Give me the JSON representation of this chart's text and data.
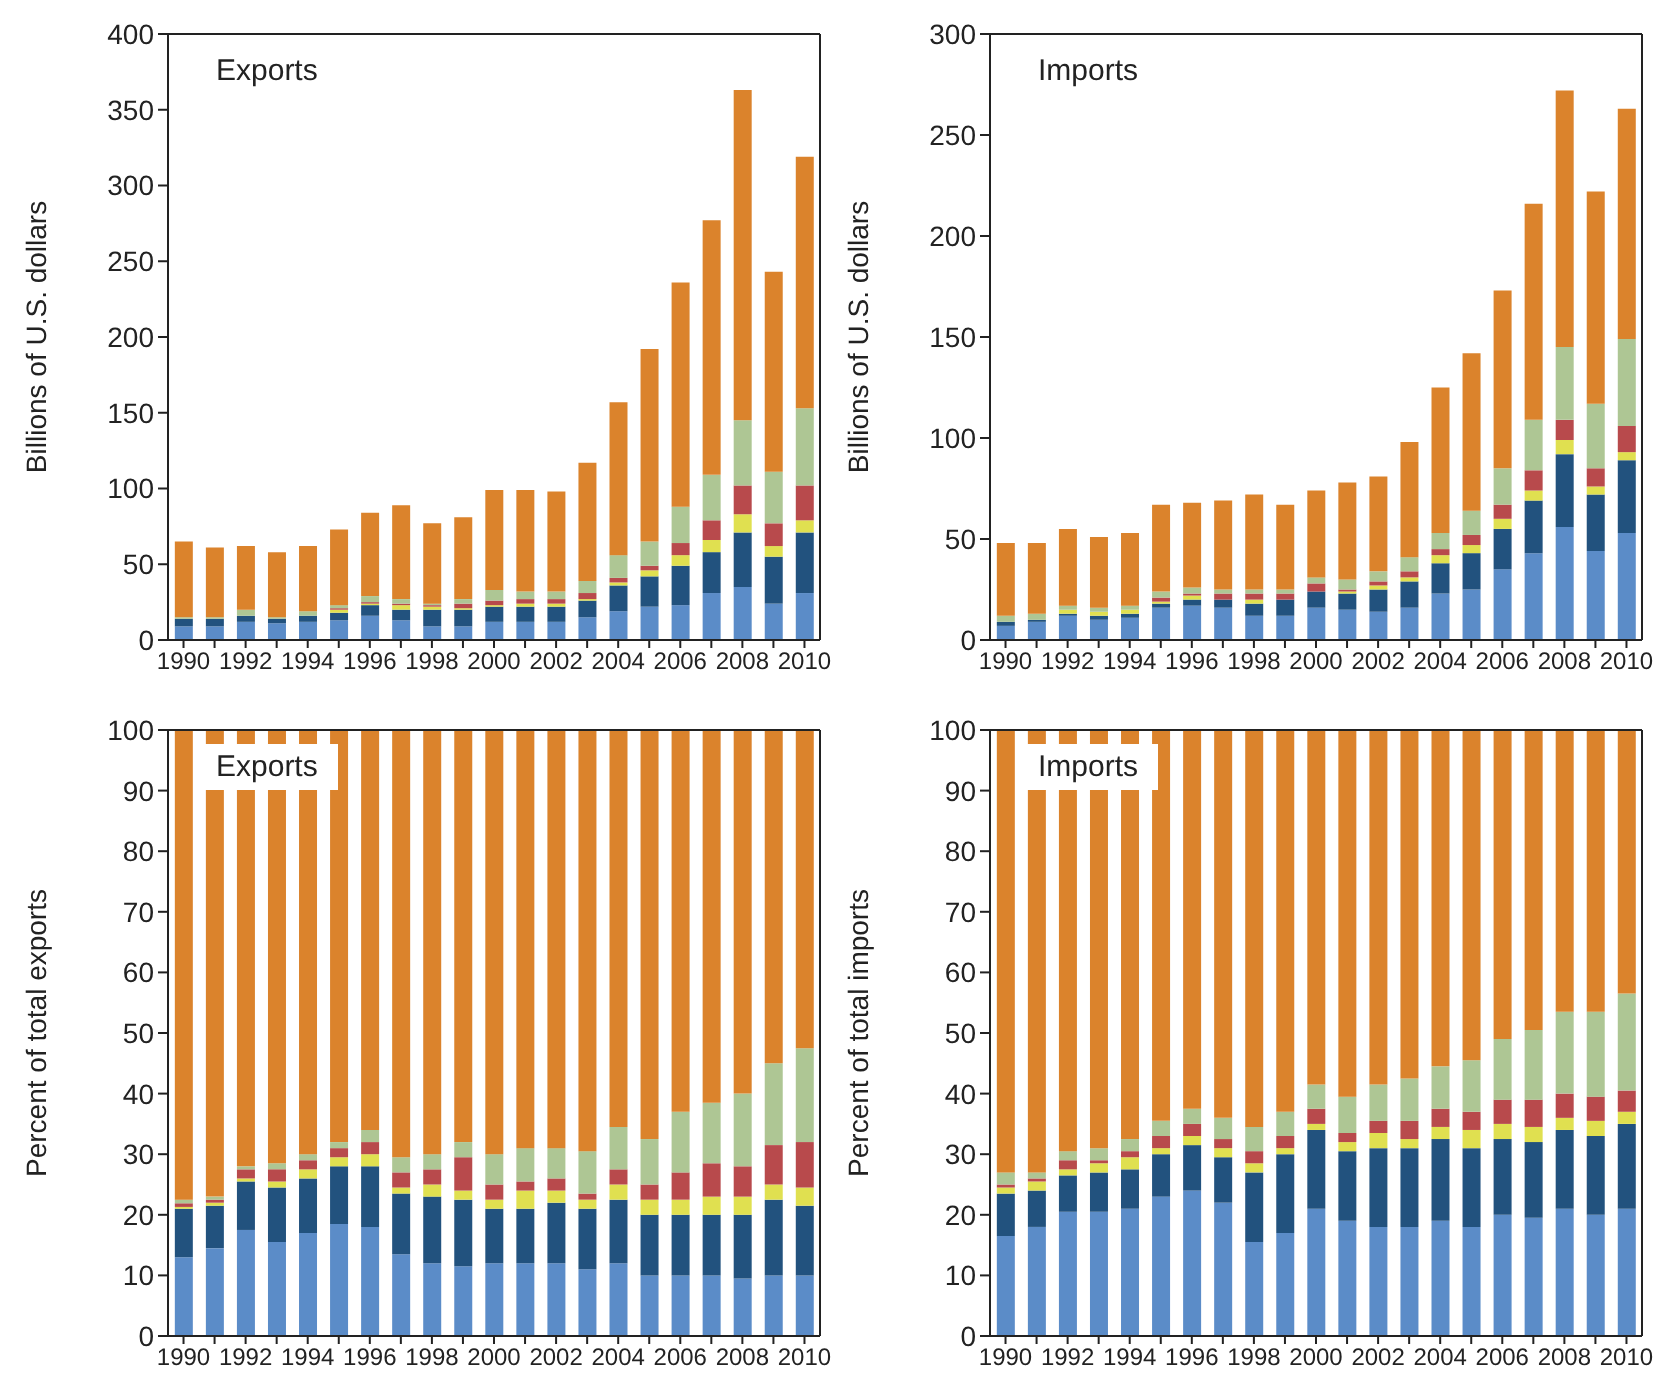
{
  "chart_data": [
    {
      "type": "bar",
      "title": "Exports",
      "ylabel": "Billions of U.S. dollars",
      "stacked": true,
      "ylim": [
        0,
        400
      ],
      "yticks": [
        0,
        50,
        100,
        150,
        200,
        250,
        300,
        350,
        400
      ],
      "categories": [
        "1990",
        null,
        "1992",
        null,
        "1994",
        null,
        "1996",
        null,
        "1998",
        null,
        "2000",
        null,
        "2002",
        null,
        "2004",
        null,
        "2006",
        null,
        "2008",
        null,
        "2010"
      ],
      "series": [
        {
          "color": "#5b8cc8",
          "values": [
            9,
            9,
            12,
            11,
            12,
            13,
            16,
            13,
            9,
            9,
            12,
            12,
            12,
            15,
            19,
            22,
            23,
            31,
            35,
            24,
            31
          ]
        },
        {
          "color": "#22527e",
          "values": [
            5,
            5,
            4,
            3,
            4,
            5,
            7,
            7,
            11,
            11,
            10,
            10,
            10,
            11,
            17,
            20,
            26,
            27,
            36,
            31,
            40
          ]
        },
        {
          "color": "#e0e050",
          "values": [
            0,
            0,
            0,
            0,
            0,
            2,
            1,
            3,
            2,
            1,
            1,
            2,
            2,
            1,
            2,
            4,
            7,
            8,
            12,
            7,
            8
          ]
        },
        {
          "color": "#b84a4c",
          "values": [
            0,
            0,
            0,
            0,
            0,
            1,
            1,
            1,
            1,
            3,
            3,
            3,
            3,
            4,
            3,
            3,
            8,
            13,
            19,
            15,
            23
          ]
        },
        {
          "color": "#aec694",
          "values": [
            1,
            1,
            4,
            1,
            3,
            2,
            4,
            3,
            1,
            3,
            7,
            5,
            5,
            8,
            15,
            16,
            24,
            30,
            43,
            34,
            51
          ]
        },
        {
          "color": "#db832c",
          "values": [
            50,
            46,
            42,
            43,
            43,
            50,
            55,
            62,
            53,
            54,
            66,
            67,
            66,
            78,
            101,
            127,
            148,
            168,
            218,
            132,
            166
          ]
        }
      ]
    },
    {
      "type": "bar",
      "title": "Imports",
      "ylabel": "Billions of U.S. dollars",
      "stacked": true,
      "ylim": [
        0,
        300
      ],
      "yticks": [
        0,
        50,
        100,
        150,
        200,
        250,
        300
      ],
      "categories": [
        "1990",
        null,
        "1992",
        null,
        "1994",
        null,
        "1996",
        null,
        "1998",
        null,
        "2000",
        null,
        "2002",
        null,
        "2004",
        null,
        "2006",
        null,
        "2008",
        null,
        "2010"
      ],
      "series": [
        {
          "color": "#5b8cc8",
          "values": [
            7,
            9,
            12,
            10,
            11,
            16,
            17,
            16,
            12,
            12,
            16,
            15,
            14,
            16,
            23,
            25,
            35,
            43,
            56,
            44,
            53
          ]
        },
        {
          "color": "#22527e",
          "values": [
            2,
            1,
            1,
            2,
            2,
            2,
            3,
            4,
            6,
            8,
            8,
            8,
            11,
            13,
            15,
            18,
            20,
            26,
            36,
            28,
            36
          ]
        },
        {
          "color": "#e0e050",
          "values": [
            0,
            0,
            2,
            2,
            2,
            1,
            2,
            0,
            2,
            0,
            0,
            1,
            2,
            2,
            4,
            4,
            5,
            5,
            7,
            4,
            4
          ]
        },
        {
          "color": "#b84a4c",
          "values": [
            0,
            0,
            0,
            0,
            0,
            2,
            1,
            3,
            3,
            3,
            4,
            1,
            2,
            3,
            3,
            5,
            7,
            10,
            10,
            9,
            13
          ]
        },
        {
          "color": "#aec694",
          "values": [
            3,
            3,
            2,
            2,
            2,
            3,
            3,
            2,
            2,
            2,
            3,
            5,
            5,
            7,
            8,
            12,
            18,
            25,
            36,
            32,
            43
          ]
        },
        {
          "color": "#db832c",
          "values": [
            36,
            35,
            38,
            35,
            36,
            43,
            42,
            44,
            47,
            42,
            43,
            48,
            47,
            57,
            72,
            78,
            88,
            107,
            127,
            105,
            114
          ]
        }
      ]
    },
    {
      "type": "bar",
      "title": "Exports",
      "ylabel": "Percent of total exports",
      "stacked": true,
      "ylim": [
        0,
        100
      ],
      "yticks": [
        0,
        10,
        20,
        30,
        40,
        50,
        60,
        70,
        80,
        90,
        100
      ],
      "categories": [
        "1990",
        null,
        "1992",
        null,
        "1994",
        null,
        "1996",
        null,
        "1998",
        null,
        "2000",
        null,
        "2002",
        null,
        "2004",
        null,
        "2006",
        null,
        "2008",
        null,
        "2010"
      ],
      "series": [
        {
          "color": "#5b8cc8",
          "values": [
            13,
            14.5,
            17.5,
            15.5,
            17,
            18.5,
            18,
            13.5,
            12,
            11.5,
            12,
            12,
            12,
            11,
            12,
            10,
            10,
            10,
            9.5,
            10,
            10
          ]
        },
        {
          "color": "#22527e",
          "values": [
            8,
            7,
            8,
            9,
            9,
            9.5,
            10,
            10,
            11,
            11,
            9,
            9,
            10,
            10,
            10.5,
            10,
            10,
            10,
            10.5,
            12.5,
            11.5
          ]
        },
        {
          "color": "#e0e050",
          "values": [
            0.3,
            0.5,
            0.5,
            1,
            1.5,
            1.5,
            2,
            1,
            2,
            1.5,
            1.5,
            3,
            2,
            1.5,
            2.5,
            2.5,
            2.5,
            3,
            3,
            2.5,
            3
          ]
        },
        {
          "color": "#b84a4c",
          "values": [
            0.6,
            0.5,
            1.5,
            2,
            1.5,
            1.5,
            2,
            2.5,
            2.5,
            5.5,
            2.5,
            1.5,
            2,
            1,
            2.5,
            2.5,
            4.5,
            5.5,
            5,
            6.5,
            7.5
          ]
        },
        {
          "color": "#aec694",
          "values": [
            0.6,
            0.5,
            0.5,
            1,
            1,
            1,
            2,
            2.5,
            2.5,
            2.5,
            5,
            5.5,
            5,
            7,
            7,
            7.5,
            10,
            10,
            12,
            13.5,
            15.5
          ]
        },
        {
          "color": "#db832c",
          "values": [
            77.5,
            77,
            72,
            71.5,
            70,
            68,
            66,
            70.5,
            70,
            68,
            70,
            69,
            69,
            69.5,
            65.5,
            67.5,
            63,
            61.5,
            60,
            55,
            52.5
          ]
        }
      ]
    },
    {
      "type": "bar",
      "title": "Imports",
      "ylabel": "Percent of total imports",
      "stacked": true,
      "ylim": [
        0,
        100
      ],
      "yticks": [
        0,
        10,
        20,
        30,
        40,
        50,
        60,
        70,
        80,
        90,
        100
      ],
      "categories": [
        "1990",
        null,
        "1992",
        null,
        "1994",
        null,
        "1996",
        null,
        "1998",
        null,
        "2000",
        null,
        "2002",
        null,
        "2004",
        null,
        "2006",
        null,
        "2008",
        null,
        "2010"
      ],
      "series": [
        {
          "color": "#5b8cc8",
          "values": [
            16.5,
            18,
            20.5,
            20.5,
            21,
            23,
            24,
            22,
            15.5,
            17,
            21,
            19,
            18,
            18,
            19,
            18,
            20,
            19.5,
            21,
            20,
            21
          ]
        },
        {
          "color": "#22527e",
          "values": [
            7,
            6,
            6,
            6.5,
            6.5,
            7,
            7.5,
            7.5,
            11.5,
            13,
            13,
            11.5,
            13,
            13,
            13.5,
            13,
            12.5,
            12.5,
            13,
            13,
            14
          ]
        },
        {
          "color": "#e0e050",
          "values": [
            1,
            1.5,
            1,
            1.5,
            2,
            1,
            1.5,
            1.5,
            1.5,
            1,
            1,
            1.5,
            2.5,
            1.5,
            2,
            3,
            2.5,
            2.5,
            2,
            2.5,
            2
          ]
        },
        {
          "color": "#b84a4c",
          "values": [
            0.5,
            0.5,
            1.5,
            0.5,
            1,
            2,
            2,
            1.5,
            2,
            2,
            2.5,
            1.5,
            2,
            3,
            3,
            3,
            4,
            4.5,
            4,
            4,
            3.5
          ]
        },
        {
          "color": "#aec694",
          "values": [
            2,
            1,
            1.5,
            2,
            2,
            2.5,
            2.5,
            3.5,
            4,
            4,
            4,
            6,
            6,
            7,
            7,
            8.5,
            10,
            11.5,
            13.5,
            14,
            16
          ]
        },
        {
          "color": "#db832c",
          "values": [
            73,
            73,
            69.5,
            69,
            67.5,
            64.5,
            62.5,
            64,
            65.5,
            63,
            58.5,
            60.5,
            58.5,
            57.5,
            55.5,
            54.5,
            51,
            49.5,
            46.5,
            46.5,
            43.5
          ]
        }
      ]
    }
  ]
}
